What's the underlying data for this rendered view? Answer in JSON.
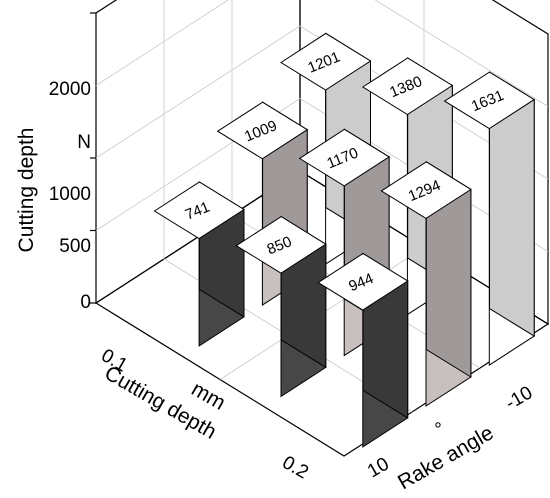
{
  "chart_data": {
    "type": "bar",
    "y_axis": {
      "label": "Cutting depth",
      "unit": "N",
      "ticks": [
        0,
        500,
        1000,
        2000
      ],
      "ylim": [
        0,
        2000
      ]
    },
    "rake_axis": {
      "label": "Rake angle",
      "unit": "°",
      "tick_labels": [
        "10",
        "-10"
      ]
    },
    "depth_axis": {
      "label": "Cutting depth",
      "unit": "mm",
      "tick_labels": [
        "0.1",
        "0.2"
      ]
    },
    "grid": true,
    "series": [
      {
        "values": [
          741,
          850,
          944
        ],
        "color": "#474747"
      },
      {
        "values": [
          1009,
          1170,
          1294
        ],
        "color": "#c8bfbf"
      },
      {
        "values": [
          1201,
          1380,
          1631
        ],
        "color": "#ffffff"
      }
    ]
  }
}
